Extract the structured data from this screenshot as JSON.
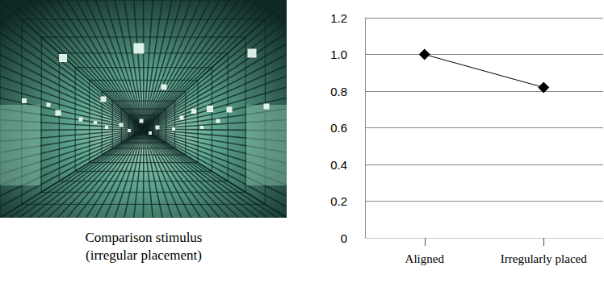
{
  "chart_data": {
    "type": "line",
    "categories": [
      "Aligned",
      "Irregularly placed"
    ],
    "values": [
      1.0,
      0.82
    ],
    "color": "#000000",
    "marker": "diamond",
    "line_style": "solid",
    "ylim": [
      0,
      1.2
    ],
    "yticks": [
      0,
      0.2,
      0.4,
      0.6,
      0.8,
      {
        "value": 1.0,
        "label": "1.0"
      },
      1.2
    ],
    "grid": true
  },
  "image": {
    "caption": [
      "Comparison stimulus",
      "(irregular placement)"
    ]
  }
}
